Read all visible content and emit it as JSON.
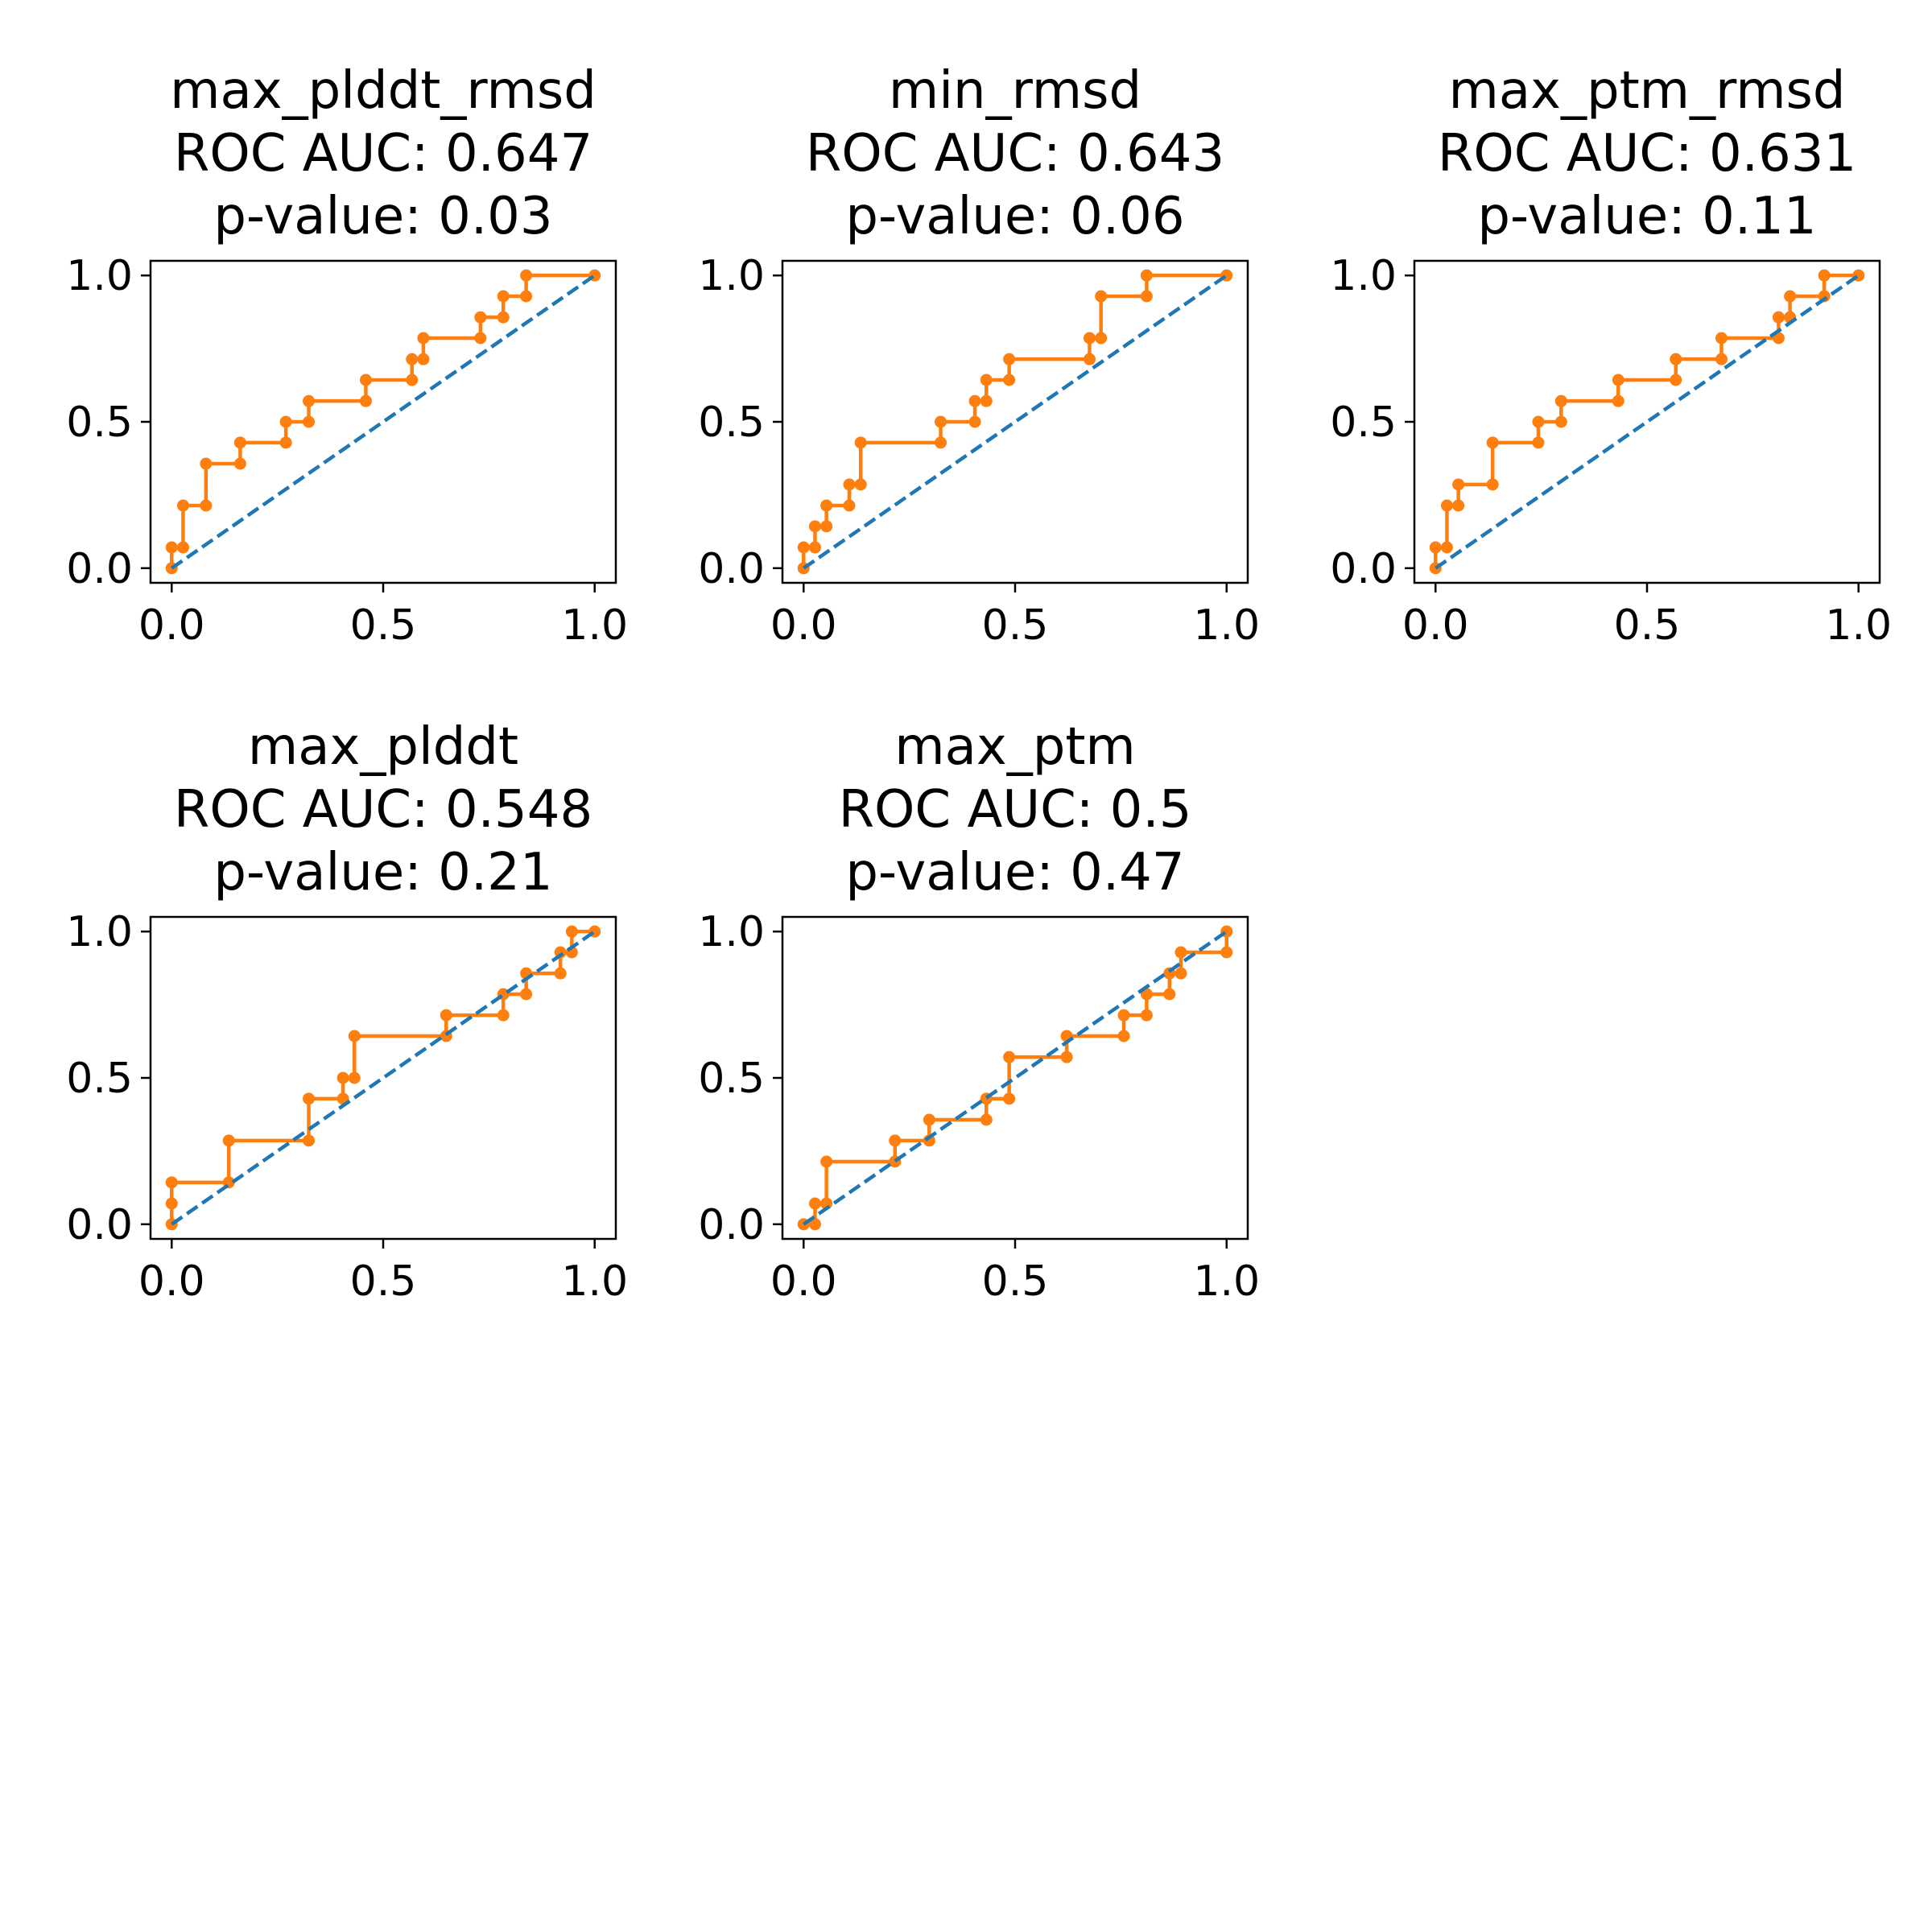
{
  "figure": {
    "colors": {
      "roc": "#ff7f0e",
      "chance": "#1f77b4",
      "axes": "#000000"
    }
  },
  "chart_data": [
    {
      "type": "line",
      "title": [
        "max_plddt_rmsd",
        "ROC AUC: 0.647",
        "p-value: 0.03"
      ],
      "xlim": [
        -0.05,
        1.05
      ],
      "ylim": [
        -0.05,
        1.05
      ],
      "xticks": [
        "0.0",
        "0.5",
        "1.0"
      ],
      "yticks": [
        "0.0",
        "0.5",
        "1.0"
      ],
      "grid": false,
      "series": [
        {
          "style": "step-markers",
          "x": [
            0,
            0,
            0.027,
            0.027,
            0.081,
            0.081,
            0.162,
            0.162,
            0.27,
            0.27,
            0.324,
            0.324,
            0.459,
            0.459,
            0.568,
            0.568,
            0.595,
            0.595,
            0.73,
            0.73,
            0.784,
            0.784,
            0.838,
            0.838,
            1.0
          ],
          "y": [
            0,
            0.071,
            0.071,
            0.214,
            0.214,
            0.357,
            0.357,
            0.429,
            0.429,
            0.5,
            0.5,
            0.571,
            0.571,
            0.643,
            0.643,
            0.714,
            0.714,
            0.786,
            0.786,
            0.857,
            0.857,
            0.929,
            0.929,
            1.0,
            1.0
          ]
        },
        {
          "style": "dashed",
          "x": [
            0,
            1
          ],
          "y": [
            0,
            1
          ]
        }
      ]
    },
    {
      "type": "line",
      "title": [
        "min_rmsd",
        "ROC AUC: 0.643",
        "p-value: 0.06"
      ],
      "xlim": [
        -0.05,
        1.05
      ],
      "ylim": [
        -0.05,
        1.05
      ],
      "xticks": [
        "0.0",
        "0.5",
        "1.0"
      ],
      "yticks": [
        "0.0",
        "0.5",
        "1.0"
      ],
      "grid": false,
      "series": [
        {
          "style": "step-markers",
          "x": [
            0,
            0,
            0.027,
            0.027,
            0.054,
            0.054,
            0.108,
            0.108,
            0.135,
            0.135,
            0.324,
            0.324,
            0.405,
            0.405,
            0.432,
            0.432,
            0.486,
            0.486,
            0.676,
            0.676,
            0.703,
            0.703,
            0.811,
            0.811,
            1.0
          ],
          "y": [
            0,
            0.071,
            0.071,
            0.143,
            0.143,
            0.214,
            0.214,
            0.286,
            0.286,
            0.429,
            0.429,
            0.5,
            0.5,
            0.571,
            0.571,
            0.643,
            0.643,
            0.714,
            0.714,
            0.786,
            0.786,
            0.929,
            0.929,
            1.0,
            1.0
          ]
        },
        {
          "style": "dashed",
          "x": [
            0,
            1
          ],
          "y": [
            0,
            1
          ]
        }
      ]
    },
    {
      "type": "line",
      "title": [
        "max_ptm_rmsd",
        "ROC AUC: 0.631",
        "p-value: 0.11"
      ],
      "xlim": [
        -0.05,
        1.05
      ],
      "ylim": [
        -0.05,
        1.05
      ],
      "xticks": [
        "0.0",
        "0.5",
        "1.0"
      ],
      "yticks": [
        "0.0",
        "0.5",
        "1.0"
      ],
      "grid": false,
      "series": [
        {
          "style": "step-markers",
          "x": [
            0,
            0,
            0.027,
            0.027,
            0.054,
            0.054,
            0.135,
            0.135,
            0.243,
            0.243,
            0.297,
            0.297,
            0.432,
            0.432,
            0.568,
            0.568,
            0.676,
            0.676,
            0.811,
            0.811,
            0.838,
            0.838,
            0.919,
            0.919,
            1.0
          ],
          "y": [
            0,
            0.071,
            0.071,
            0.214,
            0.214,
            0.286,
            0.286,
            0.429,
            0.429,
            0.5,
            0.5,
            0.571,
            0.571,
            0.643,
            0.643,
            0.714,
            0.714,
            0.786,
            0.786,
            0.857,
            0.857,
            0.929,
            0.929,
            1.0,
            1.0
          ]
        },
        {
          "style": "dashed",
          "x": [
            0,
            1
          ],
          "y": [
            0,
            1
          ]
        }
      ]
    },
    {
      "type": "line",
      "title": [
        "max_plddt",
        "ROC AUC: 0.548",
        "p-value: 0.21"
      ],
      "xlim": [
        -0.05,
        1.05
      ],
      "ylim": [
        -0.05,
        1.05
      ],
      "xticks": [
        "0.0",
        "0.5",
        "1.0"
      ],
      "yticks": [
        "0.0",
        "0.5",
        "1.0"
      ],
      "grid": false,
      "series": [
        {
          "style": "step-markers",
          "x": [
            0,
            0,
            0,
            0.135,
            0.135,
            0.324,
            0.324,
            0.405,
            0.405,
            0.432,
            0.432,
            0.649,
            0.649,
            0.784,
            0.784,
            0.838,
            0.838,
            0.919,
            0.919,
            0.946,
            0.946,
            1.0
          ],
          "y": [
            0,
            0.071,
            0.143,
            0.143,
            0.286,
            0.286,
            0.429,
            0.429,
            0.5,
            0.5,
            0.643,
            0.643,
            0.714,
            0.714,
            0.786,
            0.786,
            0.857,
            0.857,
            0.929,
            0.929,
            1.0,
            1.0
          ]
        },
        {
          "style": "dashed",
          "x": [
            0,
            1
          ],
          "y": [
            0,
            1
          ]
        }
      ]
    },
    {
      "type": "line",
      "title": [
        "max_ptm",
        "ROC AUC: 0.5",
        "p-value: 0.47"
      ],
      "xlim": [
        -0.05,
        1.05
      ],
      "ylim": [
        -0.05,
        1.05
      ],
      "xticks": [
        "0.0",
        "0.5",
        "1.0"
      ],
      "yticks": [
        "0.0",
        "0.5",
        "1.0"
      ],
      "grid": false,
      "series": [
        {
          "style": "step-markers",
          "x": [
            0,
            0.027,
            0.027,
            0.054,
            0.054,
            0.216,
            0.216,
            0.297,
            0.297,
            0.432,
            0.432,
            0.486,
            0.486,
            0.622,
            0.622,
            0.757,
            0.757,
            0.811,
            0.811,
            0.865,
            0.865,
            0.892,
            0.892,
            1.0,
            1.0
          ],
          "y": [
            0,
            0,
            0.071,
            0.071,
            0.214,
            0.214,
            0.286,
            0.286,
            0.357,
            0.357,
            0.429,
            0.429,
            0.571,
            0.571,
            0.643,
            0.643,
            0.714,
            0.714,
            0.786,
            0.786,
            0.857,
            0.857,
            0.929,
            0.929,
            1.0
          ]
        },
        {
          "style": "dashed",
          "x": [
            0,
            1
          ],
          "y": [
            0,
            1
          ]
        }
      ]
    }
  ]
}
